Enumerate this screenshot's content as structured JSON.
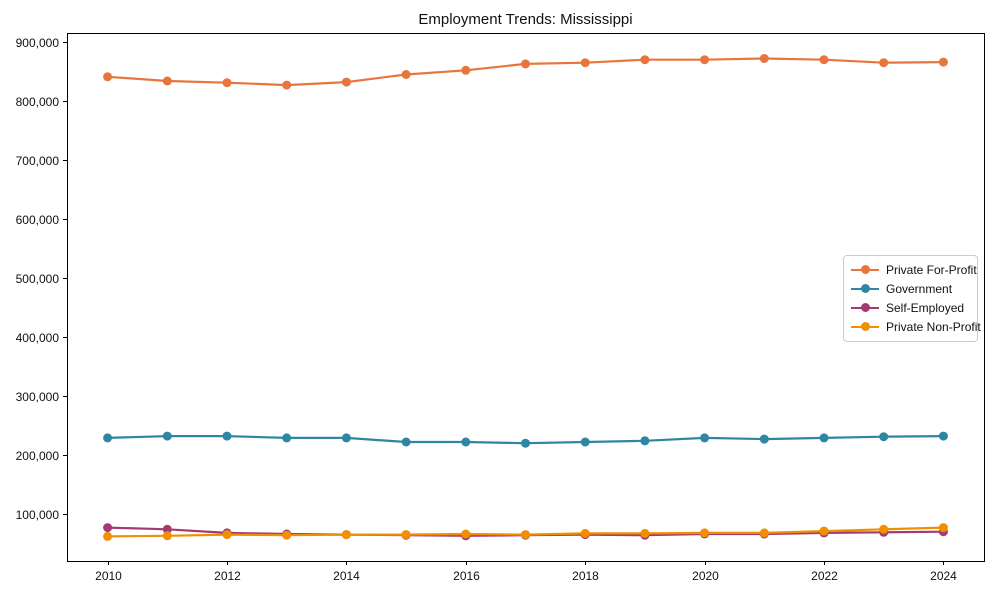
{
  "chart_data": {
    "type": "line",
    "title": "Employment Trends: Mississippi",
    "xlabel": "",
    "ylabel": "",
    "grid": false,
    "legend_position": "center-right",
    "xlim": [
      2009.32,
      2024.68
    ],
    "ylim": [
      20300,
      915300
    ],
    "x": [
      2010,
      2011,
      2012,
      2013,
      2014,
      2015,
      2016,
      2017,
      2018,
      2019,
      2020,
      2021,
      2022,
      2023,
      2024
    ],
    "x_ticks": [
      2010,
      2012,
      2014,
      2016,
      2018,
      2020,
      2022,
      2024
    ],
    "x_tick_labels": [
      "2010",
      "2012",
      "2014",
      "2016",
      "2018",
      "2020",
      "2022",
      "2024"
    ],
    "y_ticks": [
      100000,
      200000,
      300000,
      400000,
      500000,
      600000,
      700000,
      800000,
      900000
    ],
    "y_tick_labels": [
      "100,000",
      "200,000",
      "300,000",
      "400,000",
      "500,000",
      "600,000",
      "700,000",
      "800,000",
      "900,000"
    ],
    "series": [
      {
        "name": "Private For-Profit",
        "color": "#E8763C",
        "values": [
          841000,
          834000,
          831000,
          827000,
          832000,
          845000,
          852000,
          863000,
          865000,
          870000,
          870000,
          872000,
          870000,
          865000,
          866000
        ]
      },
      {
        "name": "Government",
        "color": "#2E86A3",
        "values": [
          229000,
          232000,
          232000,
          229000,
          229000,
          222000,
          222000,
          220000,
          222000,
          224000,
          229000,
          227000,
          229000,
          231000,
          232000
        ]
      },
      {
        "name": "Self-Employed",
        "color": "#A23B72",
        "values": [
          77000,
          74000,
          68000,
          66000,
          65000,
          64000,
          63000,
          64000,
          65000,
          64000,
          66000,
          66000,
          68000,
          69000,
          70000
        ]
      },
      {
        "name": "Private Non-Profit",
        "color": "#F18F01",
        "values": [
          62000,
          63000,
          65000,
          64000,
          65000,
          65000,
          66000,
          65000,
          67000,
          67000,
          68000,
          68000,
          71000,
          74000,
          77000
        ]
      }
    ]
  }
}
